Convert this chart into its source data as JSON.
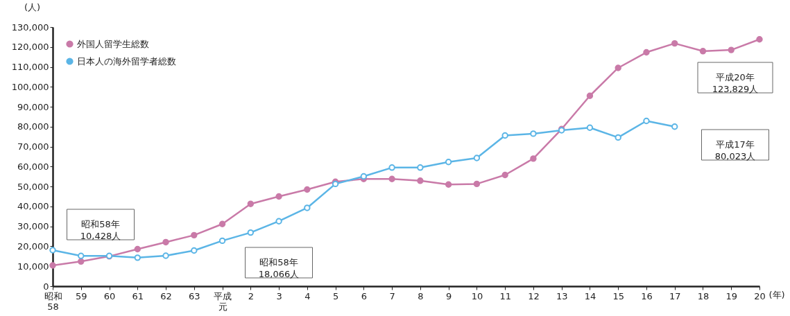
{
  "chart_data": {
    "type": "line",
    "xlabel": "(年)",
    "ylabel": "(人)",
    "categories": [
      "昭和58",
      "59",
      "60",
      "61",
      "62",
      "63",
      "平成元",
      "2",
      "3",
      "4",
      "5",
      "6",
      "7",
      "8",
      "9",
      "10",
      "11",
      "12",
      "13",
      "14",
      "15",
      "16",
      "17",
      "18",
      "19",
      "20"
    ],
    "series": [
      {
        "name": "外国人留学生総数",
        "color": "#c97aa8",
        "values": [
          10428,
          12400,
          15000,
          18600,
          22100,
          25600,
          31200,
          41300,
          45000,
          48500,
          52400,
          53800,
          53800,
          52900,
          51000,
          51300,
          55800,
          64000,
          78800,
          95500,
          109500,
          117300,
          121800,
          117900,
          118500,
          123829
        ]
      },
      {
        "name": "日本人の海外留学者総数",
        "color": "#5bb5e6",
        "values": [
          18066,
          15200,
          15200,
          14300,
          15300,
          17900,
          22800,
          26900,
          32600,
          39300,
          51300,
          55100,
          59500,
          59500,
          62300,
          64300,
          75600,
          76500,
          78200,
          79500,
          74600,
          82900,
          80023,
          null,
          null,
          null
        ]
      }
    ],
    "ylim": [
      0,
      130000
    ],
    "yticks": [
      {
        "value": 0,
        "label": "0"
      },
      {
        "value": 10000,
        "label": "10,000"
      },
      {
        "value": 20000,
        "label": "20,000"
      },
      {
        "value": 30000,
        "label": "30,000"
      },
      {
        "value": 40000,
        "label": "40,000"
      },
      {
        "value": 50000,
        "label": "50,000"
      },
      {
        "value": 60000,
        "label": "60,000"
      },
      {
        "value": 70000,
        "label": "70,000"
      },
      {
        "value": 80000,
        "label": "80,000"
      },
      {
        "value": 90000,
        "label": "90,000"
      },
      {
        "value": 100000,
        "label": "100,000"
      },
      {
        "value": 110000,
        "label": "110,000"
      },
      {
        "value": 120000,
        "label": "120,000"
      },
      {
        "value": 130000,
        "label": "130,000"
      }
    ],
    "annotations": [
      "昭和58年\n10,428人",
      "昭和58年\n18,066人",
      "平成20年\n123,829人",
      "平成17年\n80,023人"
    ],
    "legend": "top left",
    "marker": "circle",
    "line_style": "solid",
    "grid": false
  }
}
